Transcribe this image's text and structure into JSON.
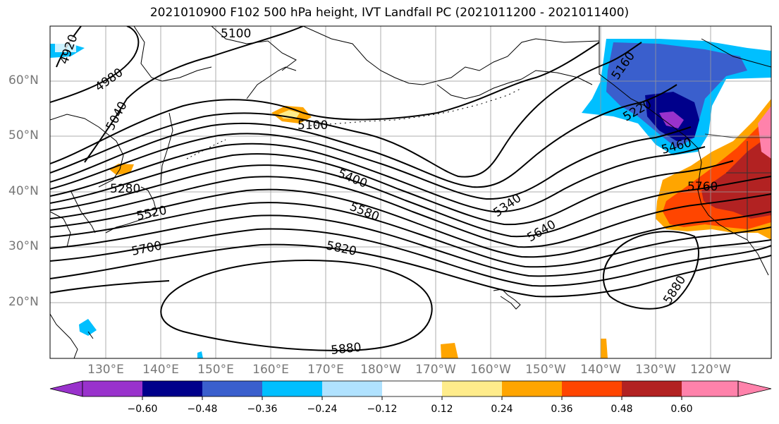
{
  "title": "2021010900 F102 500 hPa height, IVT Landfall PC (2021011200 - 2021011400)",
  "lat_labels": [
    "60°N",
    "50°N",
    "40°N",
    "30°N",
    "20°N"
  ],
  "lon_labels": [
    "130°E",
    "140°E",
    "150°E",
    "160°E",
    "170°E",
    "180°W",
    "170°W",
    "160°W",
    "150°W",
    "140°W",
    "130°W",
    "120°W"
  ],
  "contour_labels": [
    "4920",
    "4980",
    "5040",
    "5100",
    "5100",
    "5160",
    "5220",
    "5280",
    "5340",
    "5400",
    "5460",
    "5520",
    "5580",
    "5640",
    "5700",
    "5760",
    "5820",
    "5880",
    "5880"
  ],
  "colorbar": {
    "ticks": [
      "−0.60",
      "−0.48",
      "−0.36",
      "−0.24",
      "−0.12",
      "0.12",
      "0.24",
      "0.36",
      "0.48",
      "0.60"
    ],
    "colors": [
      "#9932cc",
      "#00008b",
      "#3a5fcd",
      "#00bfff",
      "#b0e2ff",
      "#ffffff",
      "#ffec8b",
      "#ffa500",
      "#ff4500",
      "#b22222",
      "#ff82ab"
    ]
  }
}
